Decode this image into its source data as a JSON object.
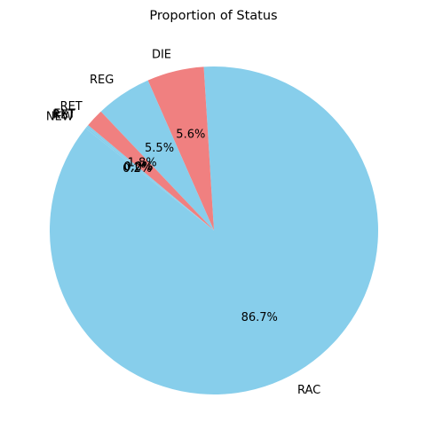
{
  "chart_data": {
    "type": "pie",
    "title": "Proportion of Status",
    "start_angle_deg": 140,
    "counterclockwise": true,
    "slices": [
      {
        "label": "EXT",
        "value": 0.0,
        "pct_label": "0.0%",
        "color": "#87CEEB"
      },
      {
        "label": "RET",
        "value": 0.2,
        "pct_label": "0.2%",
        "color": "#87CEEB"
      },
      {
        "label": "NEW",
        "value": 0.2,
        "pct_label": "0.2%",
        "color": "#87CEEB"
      },
      {
        "label": "RAC",
        "value": 86.7,
        "pct_label": "86.7%",
        "color": "#87CEEB"
      },
      {
        "label": "DIE",
        "value": 5.6,
        "pct_label": "5.6%",
        "color": "#F08080"
      },
      {
        "label": "REG",
        "value": 5.5,
        "pct_label": "5.5%",
        "color": "#87CEEB"
      },
      {
        "label": "RET",
        "value": 1.8,
        "pct_label": "1.8%",
        "color": "#F08080"
      }
    ],
    "colors": [
      "#87CEEB",
      "#F08080"
    ]
  }
}
